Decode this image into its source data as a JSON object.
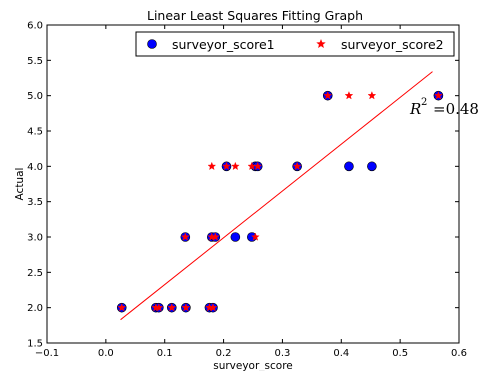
{
  "chart_data": {
    "type": "scatter",
    "title": "Linear Least Squares Fitting Graph",
    "xlabel": "surveyor_score",
    "ylabel": "Actual",
    "xlim": [
      -0.1,
      0.6
    ],
    "ylim": [
      1.5,
      6.0
    ],
    "xticks": [
      "−0.1",
      "0.0",
      "0.1",
      "0.2",
      "0.3",
      "0.4",
      "0.5",
      "0.6"
    ],
    "yticks": [
      "1.5",
      "2.0",
      "2.5",
      "3.0",
      "3.5",
      "4.0",
      "4.5",
      "5.0",
      "5.5",
      "6.0"
    ],
    "xtick_values": [
      -0.1,
      0.0,
      0.1,
      0.2,
      0.3,
      0.4,
      0.5,
      0.6
    ],
    "ytick_values": [
      1.5,
      2.0,
      2.5,
      3.0,
      3.5,
      4.0,
      4.5,
      5.0,
      5.5,
      6.0
    ],
    "grid": false,
    "legend_position": "top-right",
    "series": [
      {
        "name": "surveyor_score1",
        "marker": "circle",
        "color": "#0000ff",
        "points": [
          [
            0.027,
            2.0
          ],
          [
            0.085,
            2.0
          ],
          [
            0.09,
            2.0
          ],
          [
            0.112,
            2.0
          ],
          [
            0.136,
            2.0
          ],
          [
            0.176,
            2.0
          ],
          [
            0.182,
            2.0
          ],
          [
            0.135,
            3.0
          ],
          [
            0.18,
            3.0
          ],
          [
            0.186,
            3.0
          ],
          [
            0.22,
            3.0
          ],
          [
            0.248,
            3.0
          ],
          [
            0.205,
            4.0
          ],
          [
            0.254,
            4.0
          ],
          [
            0.258,
            4.0
          ],
          [
            0.325,
            4.0
          ],
          [
            0.413,
            4.0
          ],
          [
            0.452,
            4.0
          ],
          [
            0.377,
            5.0
          ],
          [
            0.565,
            5.0
          ]
        ]
      },
      {
        "name": "surveyor_score2",
        "marker": "star",
        "color": "#ff0000",
        "points": [
          [
            0.027,
            2.0
          ],
          [
            0.085,
            2.0
          ],
          [
            0.09,
            2.0
          ],
          [
            0.112,
            2.0
          ],
          [
            0.136,
            2.0
          ],
          [
            0.176,
            2.0
          ],
          [
            0.182,
            2.0
          ],
          [
            0.135,
            3.0
          ],
          [
            0.18,
            3.0
          ],
          [
            0.186,
            3.0
          ],
          [
            0.254,
            3.0
          ],
          [
            0.18,
            4.0
          ],
          [
            0.205,
            4.0
          ],
          [
            0.22,
            4.0
          ],
          [
            0.248,
            4.0
          ],
          [
            0.258,
            4.0
          ],
          [
            0.325,
            4.0
          ],
          [
            0.377,
            5.0
          ],
          [
            0.413,
            5.0
          ],
          [
            0.452,
            5.0
          ],
          [
            0.565,
            5.0
          ]
        ]
      }
    ],
    "fit_line": {
      "color": "#ff0000",
      "x": [
        0.025,
        0.555
      ],
      "y": [
        1.83,
        5.34
      ]
    },
    "annotation": {
      "base": "R",
      "exponent": "2",
      "text": "=0.48",
      "x": 0.52,
      "y": 4.8
    }
  }
}
